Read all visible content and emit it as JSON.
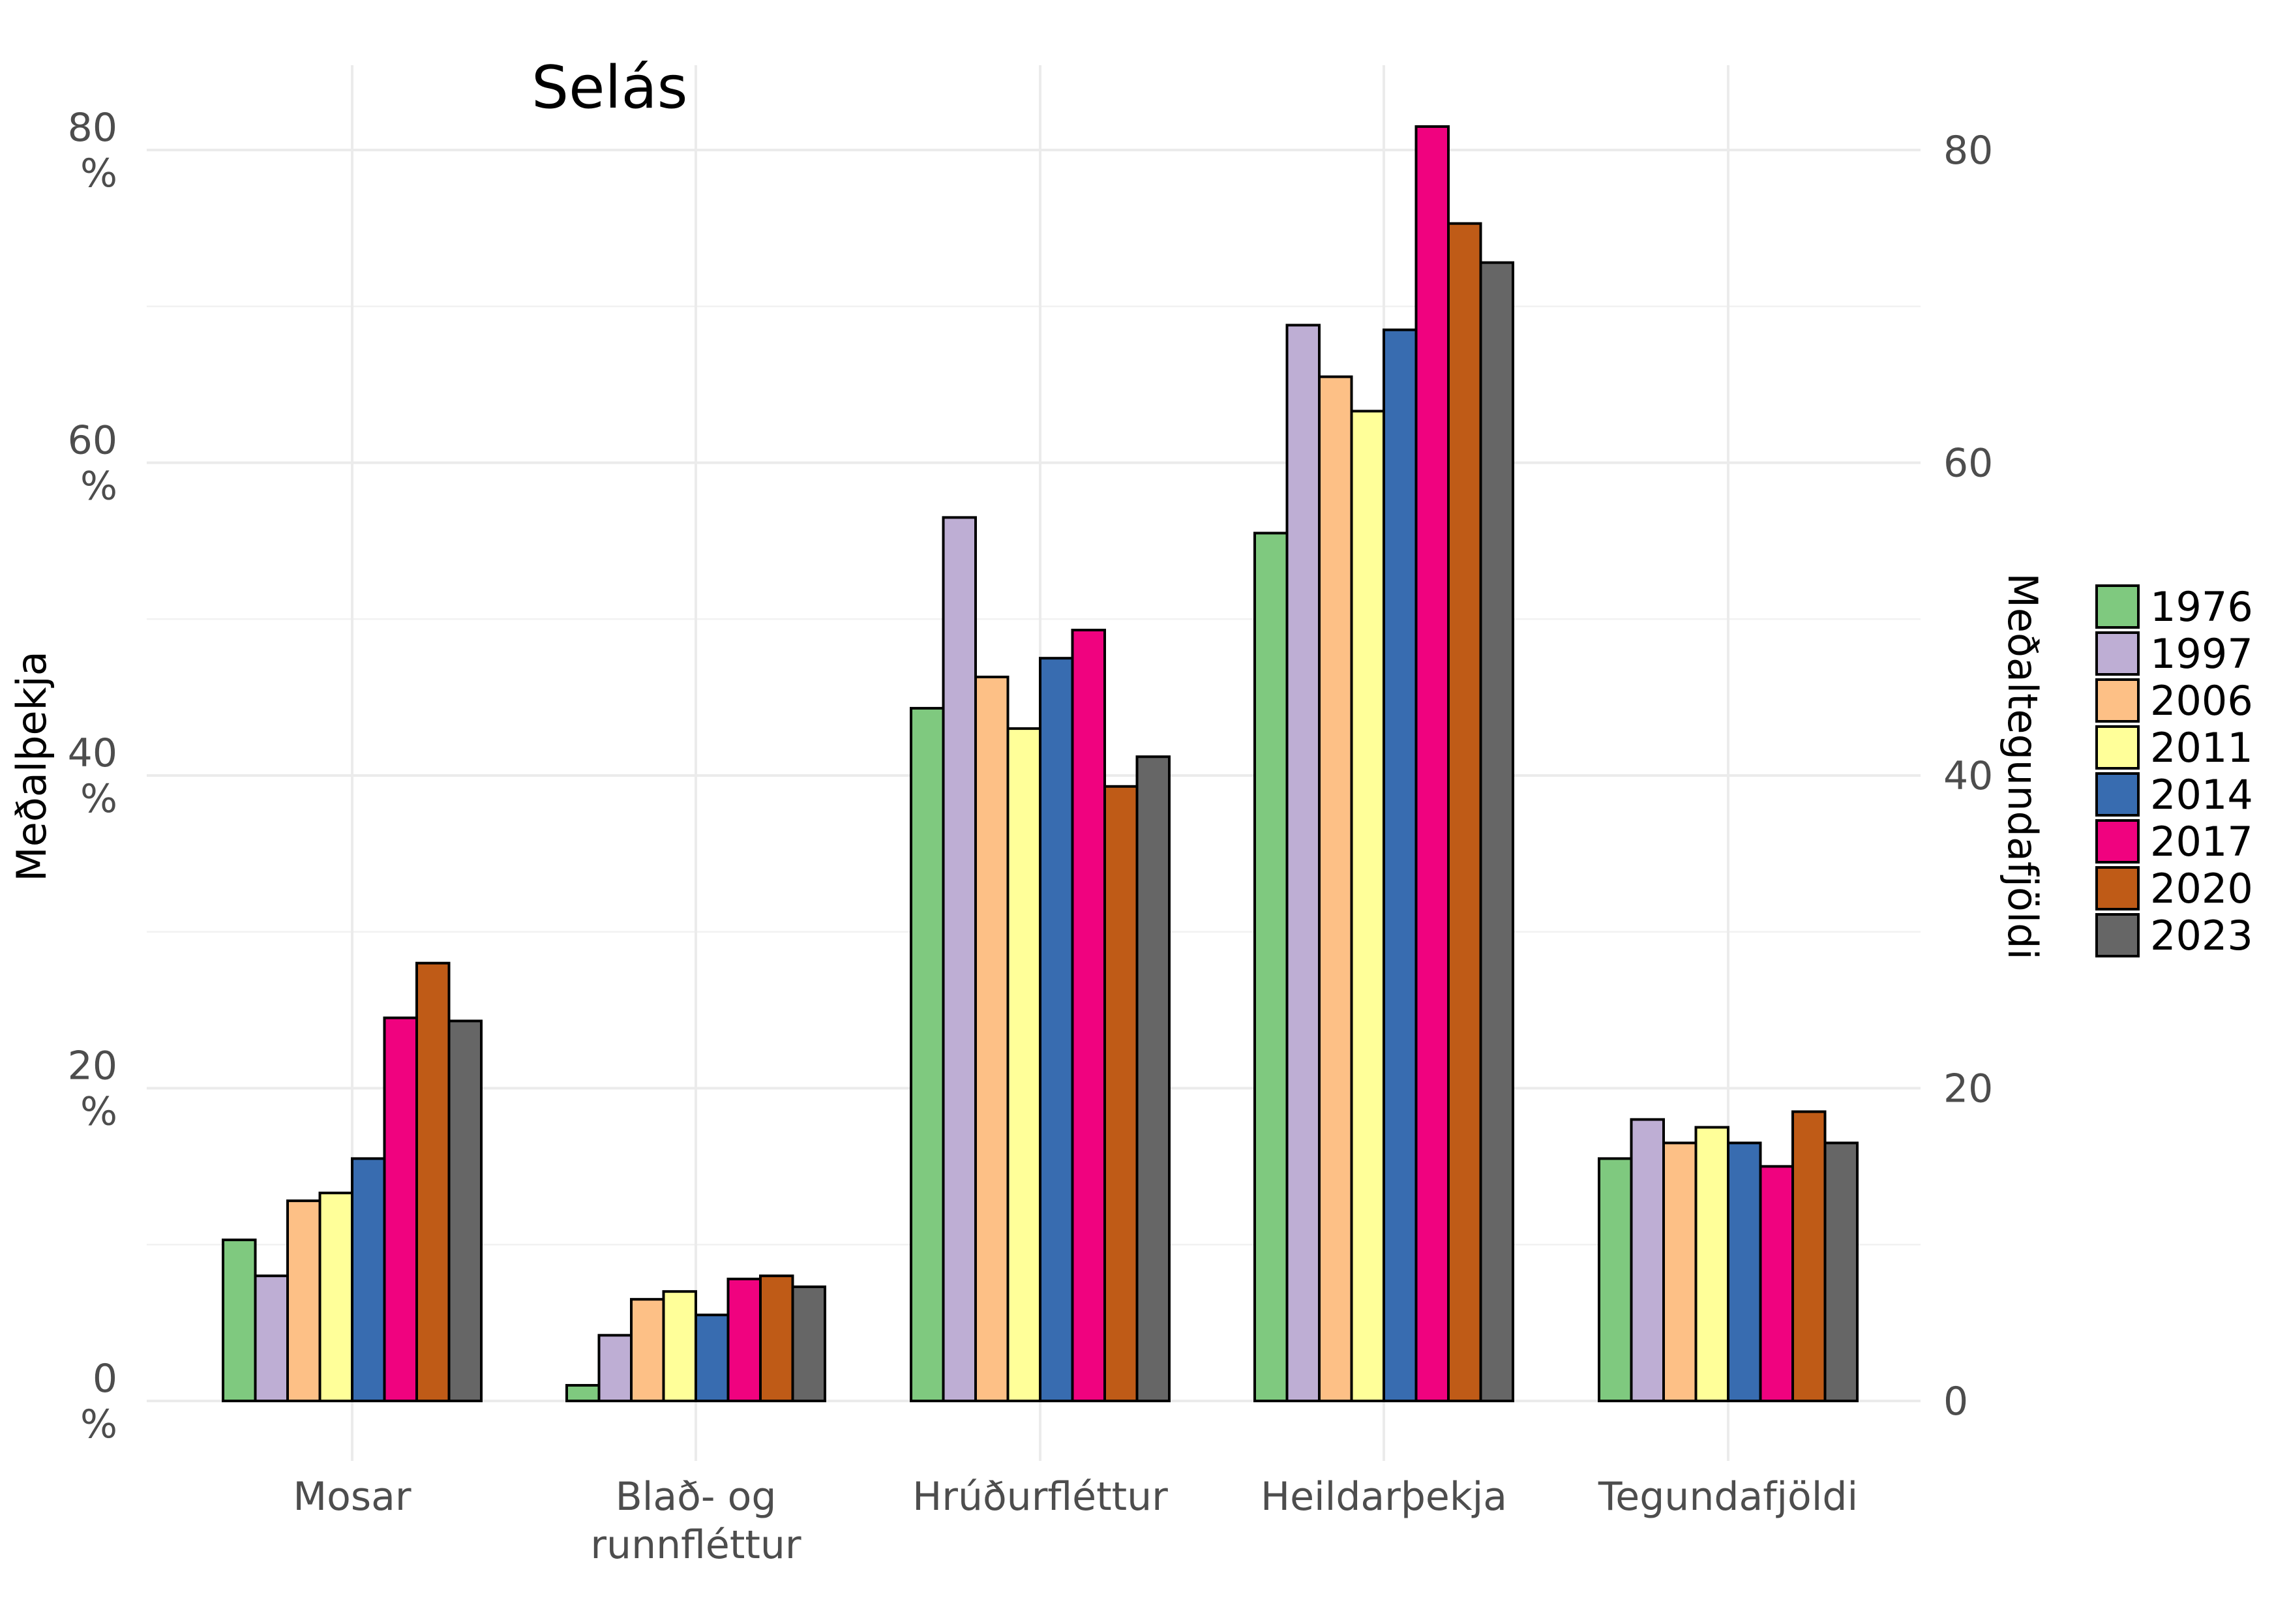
{
  "chart_data": {
    "type": "bar",
    "title": "Selás",
    "ylabel": "Meðalþekja",
    "y2label": "Meðaltegundafjöldi",
    "ylim": [
      0,
      84
    ],
    "yticks": [
      "0\n%",
      "20\n%",
      "40\n%",
      "60\n%",
      "80\n%"
    ],
    "y2ticks": [
      "0",
      "20",
      "40",
      "60",
      "80"
    ],
    "categories": [
      "Mosar",
      "Blað- og\nrunnfléttur",
      "Hrúðurfléttur",
      "Heildarþekja",
      "Tegundafjöldi"
    ],
    "legend_position": "right",
    "grid": true,
    "series": [
      {
        "name": "1976",
        "color": "#7FC97F",
        "values": [
          10.3,
          1.0,
          44.3,
          55.5,
          15.5
        ]
      },
      {
        "name": "1997",
        "color": "#BEAED4",
        "values": [
          8.0,
          4.2,
          56.5,
          68.8,
          18.0
        ]
      },
      {
        "name": "2006",
        "color": "#FDC086",
        "values": [
          12.8,
          6.5,
          46.3,
          65.5,
          16.5
        ]
      },
      {
        "name": "2011",
        "color": "#FFFF99",
        "values": [
          13.3,
          7.0,
          43.0,
          63.3,
          17.5
        ]
      },
      {
        "name": "2014",
        "color": "#386CB0",
        "values": [
          15.5,
          5.5,
          47.5,
          68.5,
          16.5
        ]
      },
      {
        "name": "2017",
        "color": "#F0027F",
        "values": [
          24.5,
          7.8,
          49.3,
          81.5,
          15.0
        ]
      },
      {
        "name": "2020",
        "color": "#BF5B17",
        "values": [
          28.0,
          8.0,
          39.3,
          75.3,
          18.5
        ]
      },
      {
        "name": "2023",
        "color": "#666666",
        "values": [
          24.3,
          7.3,
          41.2,
          72.8,
          16.5
        ]
      }
    ]
  }
}
